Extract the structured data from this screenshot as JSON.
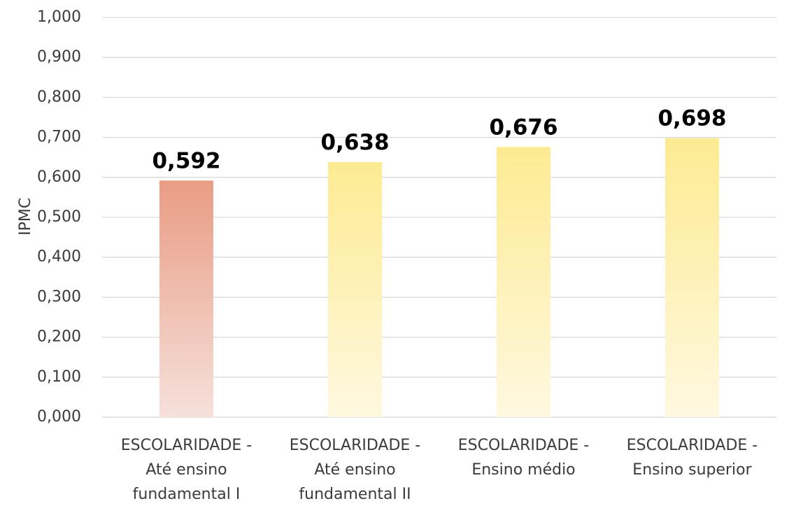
{
  "chart_data": {
    "type": "bar",
    "categories": [
      [
        "ESCOLARIDADE -",
        "Até ensino",
        "fundamental I"
      ],
      [
        "ESCOLARIDADE -",
        "Até ensino",
        "fundamental II"
      ],
      [
        "ESCOLARIDADE -",
        "Ensino médio"
      ],
      [
        "ESCOLARIDADE -",
        "Ensino superior"
      ]
    ],
    "values": [
      0.592,
      0.638,
      0.676,
      0.698
    ],
    "data_labels": [
      "0,592",
      "0,638",
      "0,676",
      "0,698"
    ],
    "ylabel": "IPMC",
    "ylim": [
      0,
      1
    ],
    "yticks": [
      "0,000",
      "0,100",
      "0,200",
      "0,300",
      "0,400",
      "0,500",
      "0,600",
      "0,700",
      "0,800",
      "0,900",
      "1,000"
    ],
    "grid": true,
    "bar_colors": [
      {
        "top": "#e99c84",
        "bottom": "#f6e1db"
      },
      {
        "top": "#fdeb92",
        "bottom": "#fef8e0"
      },
      {
        "top": "#fdeb92",
        "bottom": "#fef8e0"
      },
      {
        "top": "#fdeb92",
        "bottom": "#fef8e0"
      }
    ],
    "gridline_color": "#d9d9d9"
  }
}
